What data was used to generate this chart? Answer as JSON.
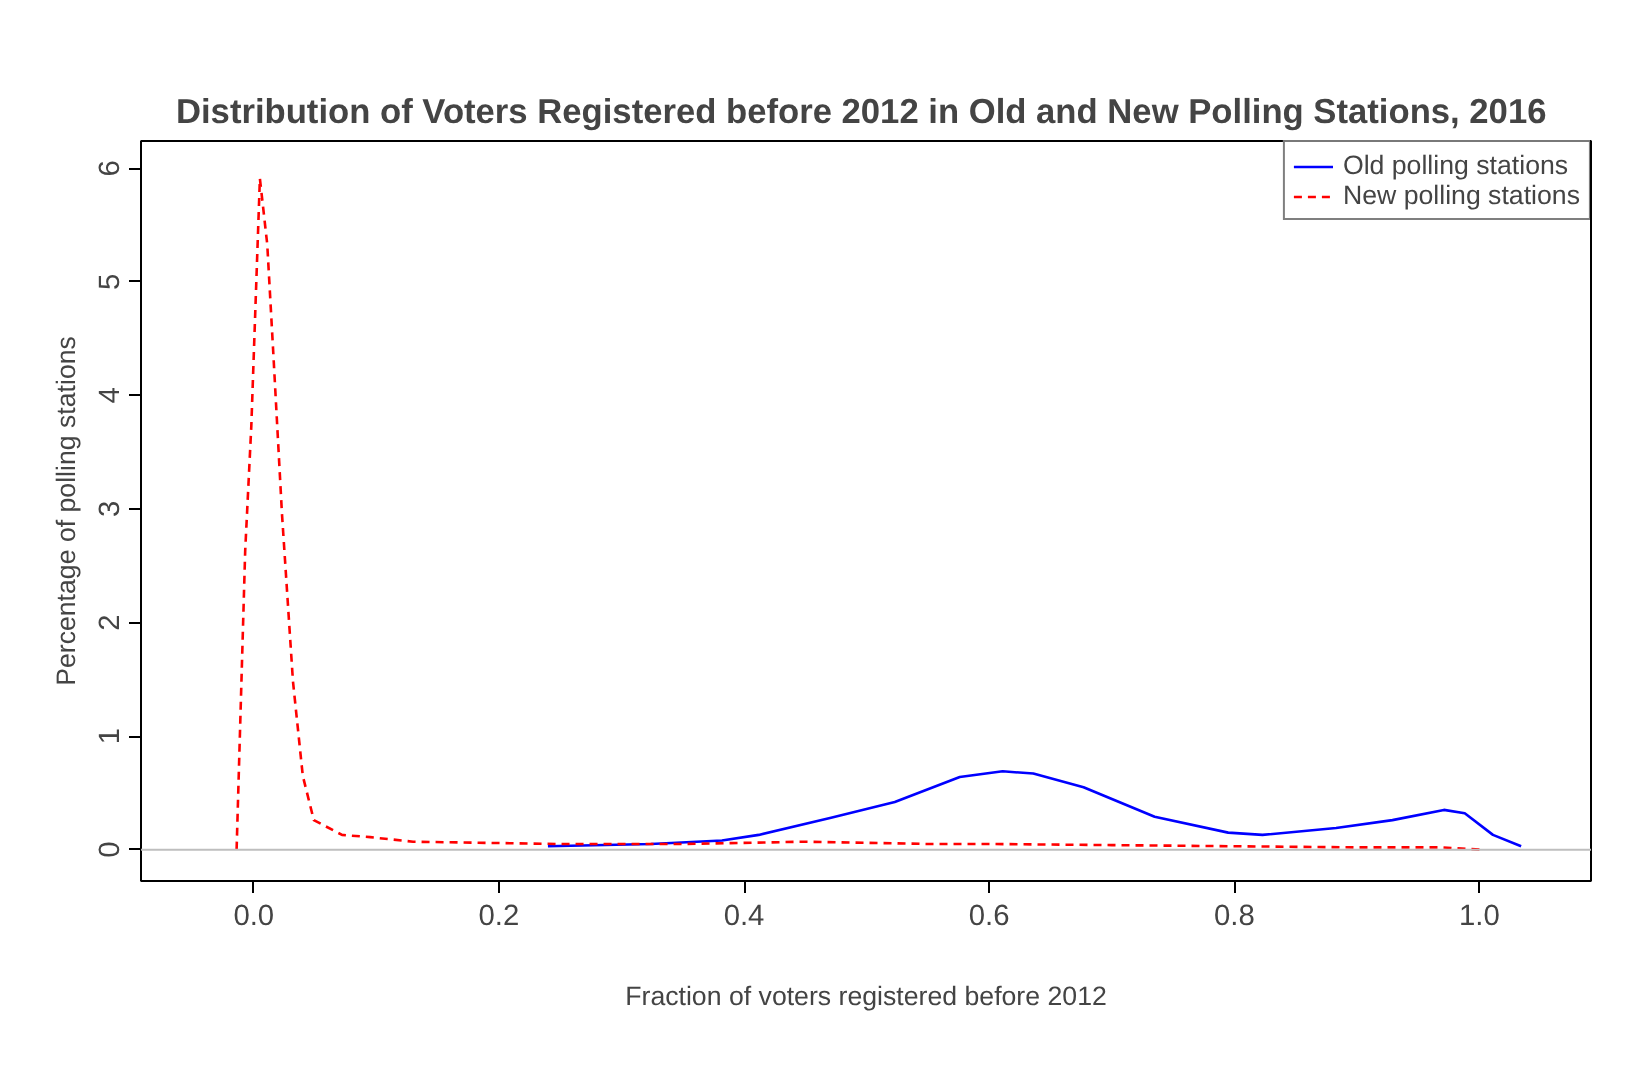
{
  "chart_data": {
    "type": "line",
    "title": "Distribution of Voters Registered  before 2012 in Old and New Polling Stations, 2016",
    "xlabel": "Fraction of voters registered before 2012",
    "ylabel": "Percentage of polling stations",
    "xlim": [
      -0.092,
      1.091
    ],
    "ylim": [
      -0.276,
      6.24
    ],
    "xticks": [
      {
        "value": 0.0,
        "label": "0.0"
      },
      0.2,
      0.4,
      0.6,
      0.8,
      {
        "value": 1.0,
        "label": "1.0"
      }
    ],
    "yticks": [
      0,
      1,
      2,
      3,
      4,
      5,
      6
    ],
    "grid": false,
    "legend": "top right",
    "ref_lines": [
      {
        "axis": "y",
        "value": 0,
        "label": null,
        "color": "#bebebe"
      }
    ],
    "series": [
      {
        "name": "Old polling stations",
        "color": "#0000ff",
        "line_style": "solid",
        "x": [
          0.24,
          0.324,
          0.382,
          0.412,
          0.471,
          0.523,
          0.576,
          0.611,
          0.636,
          0.677,
          0.735,
          0.795,
          0.823,
          0.883,
          0.929,
          0.971,
          0.988,
          1.011,
          1.034
        ],
        "values": [
          0.03,
          0.05,
          0.08,
          0.13,
          0.28,
          0.42,
          0.64,
          0.69,
          0.67,
          0.55,
          0.29,
          0.15,
          0.13,
          0.19,
          0.26,
          0.35,
          0.32,
          0.13,
          0.03
        ]
      },
      {
        "name": "New polling stations",
        "color": "#ff0000",
        "line_style": "dashed",
        "x": [
          -0.014,
          -0.007,
          -0.002,
          0.005,
          0.011,
          0.016,
          0.023,
          0.032,
          0.04,
          0.049,
          0.072,
          0.095,
          0.13,
          0.248,
          0.35,
          0.45,
          0.55,
          0.6,
          0.7,
          0.8,
          0.9,
          0.97,
          1.0
        ],
        "values": [
          0,
          2.63,
          3.73,
          5.91,
          5.33,
          4.36,
          2.96,
          1.48,
          0.65,
          0.26,
          0.13,
          0.11,
          0.07,
          0.05,
          0.05,
          0.07,
          0.05,
          0.05,
          0.04,
          0.03,
          0.02,
          0.02,
          0
        ]
      }
    ]
  }
}
